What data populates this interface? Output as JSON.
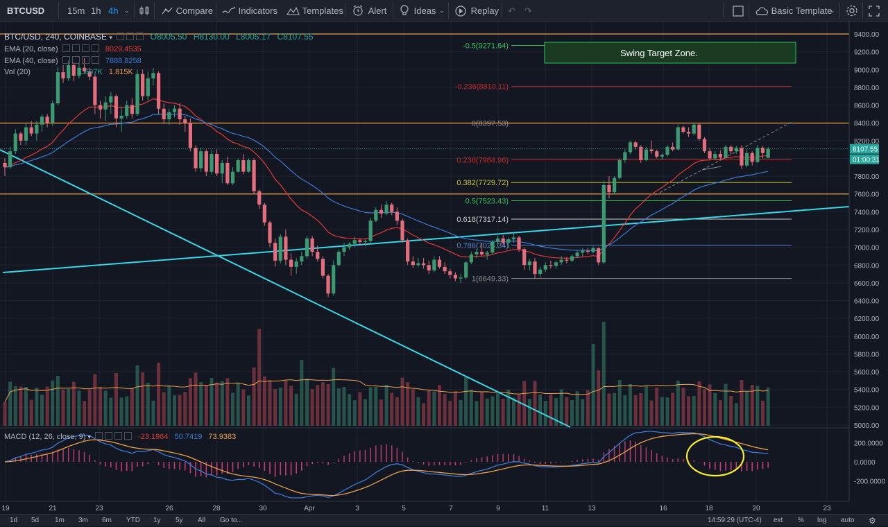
{
  "toolbar": {
    "symbol": "BTCUSD",
    "intervals": [
      "15m",
      "1h",
      "4h"
    ],
    "active_interval": "4h",
    "compare": "Compare",
    "indicators": "Indicators",
    "templates": "Templates",
    "alert": "Alert",
    "ideas": "Ideas",
    "replay": "Replay",
    "basic_template": "Basic Template"
  },
  "legend": {
    "main": "BTC/USD, 240, COINBASE",
    "ohlc": {
      "o_label": "O",
      "o": "8005.50",
      "h_label": "H",
      "h": "8130.00",
      "l_label": "L",
      "l": "8005.17",
      "c_label": "C",
      "c": "8107.55"
    },
    "ema20": {
      "name": "EMA (20, close)",
      "value": "8029.4535"
    },
    "ema40": {
      "name": "EMA (40, close)",
      "value": "7888.8258"
    },
    "vol": {
      "name": "Vol (20)",
      "v1": "1.607K",
      "v2": "1.815K"
    },
    "macd": {
      "name": "MACD (12, 26, close, 9)",
      "v1": "-23.1964",
      "v2": "50.7419",
      "v3": "73.9383"
    }
  },
  "colors": {
    "bg": "#131722",
    "up": "#26a69a",
    "down": "#ef5350",
    "upbody": "#3c8c6a",
    "downbody": "#e36e7e",
    "ema20": "#e53935",
    "ema40": "#3d7bd6",
    "orange": "#f0a04b",
    "cyan": "#3ad7e8",
    "fib_red": "#c62828",
    "fib_yellow": "#c9c93a",
    "fib_green": "#2ec45a",
    "fib_white": "#cfcfcf",
    "fib_blue": "#5b86c6",
    "fib_grey": "#8c8c8c",
    "yellow": "#f7f128"
  },
  "annotation": {
    "label": "Swing Target Zone."
  },
  "fib_levels": [
    {
      "label": "-0.5(9271.64)",
      "price": 9271.64,
      "color": "#2ec45a"
    },
    {
      "label": "-0.236(8810.11)",
      "price": 8810.11,
      "color": "#c62828"
    },
    {
      "label": "0(8397.53)",
      "price": 8397.53,
      "color": "#8c8c8c"
    },
    {
      "label": "0.236(7984.96)",
      "price": 7984.96,
      "color": "#c62828"
    },
    {
      "label": "0.382(7729.72)",
      "price": 7729.72,
      "color": "#c9c93a"
    },
    {
      "label": "0.5(7523.43)",
      "price": 7523.43,
      "color": "#2ec45a"
    },
    {
      "label": "0.618(7317.14)",
      "price": 7317.14,
      "color": "#cfcfcf"
    },
    {
      "label": "0.786(7024.34)",
      "price": 7024.34,
      "color": "#5b86c6"
    },
    {
      "label": "1(6649.33)",
      "price": 6649.33,
      "color": "#8c8c8c"
    }
  ],
  "price_axis": {
    "ticks": [
      "9400.00",
      "9200.00",
      "9000.00",
      "8800.00",
      "8600.00",
      "8400.00",
      "8200.00",
      "8000.00",
      "7800.00",
      "7600.00",
      "7400.00",
      "7200.00",
      "7000.00",
      "6800.00",
      "6600.00",
      "6400.00",
      "6200.00",
      "6000.00",
      "5800.00",
      "5600.00",
      "5400.00",
      "5200.00",
      "5000.00"
    ],
    "last_price": "8107.55",
    "countdown": "01:00:31"
  },
  "macd_axis": {
    "ticks": [
      "200.0000",
      "0.0000",
      "-200.0000"
    ]
  },
  "time_axis": {
    "ticks": [
      "19",
      "21",
      "23",
      "26",
      "28",
      "30",
      "Apr",
      "3",
      "5",
      "7",
      "9",
      "11",
      "13",
      "16",
      "18",
      "20",
      "23"
    ]
  },
  "bottom_bar": {
    "ranges": [
      "1d",
      "5d",
      "1m",
      "3m",
      "6m",
      "YTD",
      "1y",
      "5y",
      "All"
    ],
    "goto": "Go to...",
    "clock": "14:59:29 (UTC-4)",
    "ext": "ext",
    "pct": "%",
    "log": "log",
    "auto": "auto"
  },
  "chart_data": {
    "type": "candlestick",
    "interval": "4h",
    "price_range": [
      5000,
      9500
    ],
    "candles": [
      [
        7950,
        8000,
        7800,
        7900
      ],
      [
        7900,
        8130,
        7880,
        8080
      ],
      [
        8080,
        8330,
        8050,
        8280
      ],
      [
        8280,
        8300,
        8150,
        8200
      ],
      [
        8200,
        8400,
        8150,
        8350
      ],
      [
        8350,
        8420,
        8250,
        8280
      ],
      [
        8280,
        8420,
        8200,
        8380
      ],
      [
        8380,
        8500,
        8300,
        8470
      ],
      [
        8470,
        8500,
        8350,
        8400
      ],
      [
        8400,
        8650,
        8370,
        8620
      ],
      [
        8620,
        9030,
        8600,
        8970
      ],
      [
        8970,
        9050,
        8850,
        8900
      ],
      [
        8900,
        9100,
        8870,
        9050
      ],
      [
        9050,
        9080,
        8870,
        8930
      ],
      [
        8930,
        9080,
        8900,
        9020
      ],
      [
        9020,
        9130,
        8950,
        8980
      ],
      [
        8980,
        9020,
        8880,
        8920
      ],
      [
        8920,
        8950,
        8500,
        8600
      ],
      [
        8600,
        8650,
        8450,
        8550
      ],
      [
        8550,
        8700,
        8420,
        8630
      ],
      [
        8630,
        8750,
        8500,
        8700
      ],
      [
        8700,
        8720,
        8350,
        8450
      ],
      [
        8450,
        8580,
        8300,
        8480
      ],
      [
        8480,
        8650,
        8450,
        8600
      ],
      [
        8600,
        8680,
        8450,
        8500
      ],
      [
        8500,
        9000,
        8480,
        8950
      ],
      [
        8950,
        9000,
        8650,
        8700
      ],
      [
        8700,
        8980,
        8650,
        8900
      ],
      [
        8900,
        9020,
        8820,
        8960
      ],
      [
        8960,
        8980,
        8500,
        8560
      ],
      [
        8560,
        8620,
        8400,
        8440
      ],
      [
        8440,
        8560,
        8380,
        8520
      ],
      [
        8520,
        8600,
        8460,
        8560
      ],
      [
        8560,
        8620,
        8380,
        8440
      ],
      [
        8440,
        8480,
        8300,
        8400
      ],
      [
        8400,
        8450,
        8080,
        8120
      ],
      [
        8120,
        8150,
        7850,
        7890
      ],
      [
        7890,
        8120,
        7850,
        8080
      ],
      [
        8080,
        8100,
        7800,
        7850
      ],
      [
        7850,
        8100,
        7820,
        8050
      ],
      [
        8050,
        8100,
        7800,
        7830
      ],
      [
        7830,
        7980,
        7720,
        7950
      ],
      [
        7950,
        8020,
        7700,
        7720
      ],
      [
        7720,
        7900,
        7700,
        7850
      ],
      [
        7850,
        8000,
        7840,
        7980
      ],
      [
        7980,
        8050,
        7820,
        7850
      ],
      [
        7850,
        8000,
        7840,
        7980
      ],
      [
        7980,
        8000,
        7600,
        7630
      ],
      [
        7630,
        7650,
        7430,
        7480
      ],
      [
        7480,
        7500,
        7240,
        7280
      ],
      [
        7280,
        7300,
        7000,
        7050
      ],
      [
        7050,
        7100,
        6780,
        6850
      ],
      [
        6850,
        7150,
        6820,
        7120
      ],
      [
        7120,
        7200,
        6800,
        6860
      ],
      [
        6860,
        6930,
        6680,
        6780
      ],
      [
        6780,
        6880,
        6700,
        6840
      ],
      [
        6840,
        6950,
        6800,
        6900
      ],
      [
        6900,
        7130,
        6870,
        7100
      ],
      [
        7100,
        7130,
        6900,
        6950
      ],
      [
        6950,
        7020,
        6840,
        6870
      ],
      [
        6870,
        6900,
        6650,
        6680
      ],
      [
        6680,
        6700,
        6440,
        6480
      ],
      [
        6480,
        6850,
        6460,
        6800
      ],
      [
        6800,
        6970,
        6780,
        6950
      ],
      [
        6950,
        7050,
        6900,
        7000
      ],
      [
        7000,
        7060,
        6970,
        7040
      ],
      [
        7040,
        7120,
        7000,
        7080
      ],
      [
        7080,
        7100,
        7020,
        7060
      ],
      [
        7060,
        7100,
        7010,
        7070
      ],
      [
        7070,
        7330,
        7050,
        7300
      ],
      [
        7300,
        7450,
        7280,
        7420
      ],
      [
        7420,
        7480,
        7330,
        7380
      ],
      [
        7380,
        7520,
        7360,
        7480
      ],
      [
        7480,
        7500,
        7360,
        7400
      ],
      [
        7400,
        7450,
        7250,
        7300
      ],
      [
        7300,
        7320,
        7050,
        7080
      ],
      [
        7080,
        7100,
        6800,
        6840
      ],
      [
        6840,
        6900,
        6770,
        6800
      ],
      [
        6800,
        6880,
        6780,
        6820
      ],
      [
        6820,
        6880,
        6760,
        6800
      ],
      [
        6800,
        6850,
        6700,
        6740
      ],
      [
        6740,
        6900,
        6720,
        6860
      ],
      [
        6860,
        6900,
        6760,
        6780
      ],
      [
        6780,
        6830,
        6700,
        6730
      ],
      [
        6730,
        6760,
        6650,
        6690
      ],
      [
        6690,
        6720,
        6620,
        6650
      ],
      [
        6650,
        6700,
        6600,
        6660
      ],
      [
        6660,
        6850,
        6640,
        6830
      ],
      [
        6830,
        6950,
        6810,
        6920
      ],
      [
        6920,
        6980,
        6880,
        6950
      ],
      [
        6950,
        7050,
        6900,
        6920
      ],
      [
        6920,
        6960,
        6860,
        6940
      ],
      [
        6940,
        7080,
        6920,
        7060
      ],
      [
        7060,
        7130,
        7000,
        7100
      ],
      [
        7100,
        7140,
        7020,
        7050
      ],
      [
        7050,
        7110,
        6990,
        7090
      ],
      [
        7090,
        7160,
        7050,
        7110
      ],
      [
        7110,
        7130,
        6950,
        6980
      ],
      [
        6980,
        7000,
        6750,
        6800
      ],
      [
        6800,
        6870,
        6740,
        6840
      ],
      [
        6840,
        6880,
        6650,
        6700
      ],
      [
        6700,
        6780,
        6660,
        6750
      ],
      [
        6750,
        6830,
        6720,
        6800
      ],
      [
        6800,
        6850,
        6760,
        6790
      ],
      [
        6790,
        6850,
        6760,
        6830
      ],
      [
        6830,
        6900,
        6800,
        6860
      ],
      [
        6860,
        6890,
        6820,
        6850
      ],
      [
        6850,
        6920,
        6830,
        6900
      ],
      [
        6900,
        6960,
        6880,
        6940
      ],
      [
        6940,
        6990,
        6900,
        6960
      ],
      [
        6960,
        6990,
        6920,
        6950
      ],
      [
        6950,
        7010,
        6930,
        6990
      ],
      [
        6990,
        7000,
        6800,
        6830
      ],
      [
        6830,
        7750,
        6810,
        7700
      ],
      [
        7700,
        7800,
        7550,
        7620
      ],
      [
        7620,
        7800,
        7600,
        7780
      ],
      [
        7780,
        8000,
        7760,
        7980
      ],
      [
        7980,
        8100,
        7950,
        8070
      ],
      [
        8070,
        8200,
        8050,
        8180
      ],
      [
        8180,
        8200,
        8100,
        8130
      ],
      [
        8130,
        8150,
        7950,
        7980
      ],
      [
        7980,
        8130,
        7970,
        8100
      ],
      [
        8100,
        8200,
        8050,
        8080
      ],
      [
        8080,
        8100,
        8000,
        8020
      ],
      [
        8020,
        8060,
        7980,
        8040
      ],
      [
        8040,
        8150,
        8020,
        8130
      ],
      [
        8130,
        8180,
        8080,
        8100
      ],
      [
        8100,
        8380,
        8090,
        8350
      ],
      [
        8350,
        8370,
        8280,
        8300
      ],
      [
        8300,
        8350,
        8240,
        8280
      ],
      [
        8280,
        8400,
        8260,
        8380
      ],
      [
        8380,
        8390,
        8200,
        8220
      ],
      [
        8220,
        8240,
        8060,
        8080
      ],
      [
        8080,
        8120,
        7980,
        8000
      ],
      [
        8000,
        8080,
        7980,
        8050
      ],
      [
        8050,
        8090,
        7990,
        8010
      ],
      [
        8010,
        8150,
        8000,
        8130
      ],
      [
        8130,
        8150,
        8050,
        8080
      ],
      [
        8080,
        8140,
        8050,
        8120
      ],
      [
        8120,
        8150,
        7880,
        7920
      ],
      [
        7920,
        8100,
        7900,
        8060
      ],
      [
        8060,
        8080,
        7920,
        7960
      ],
      [
        7960,
        8150,
        7950,
        8120
      ],
      [
        8120,
        8140,
        8000,
        8060
      ],
      [
        8005.5,
        8130,
        8005.17,
        8107.55
      ]
    ]
  }
}
